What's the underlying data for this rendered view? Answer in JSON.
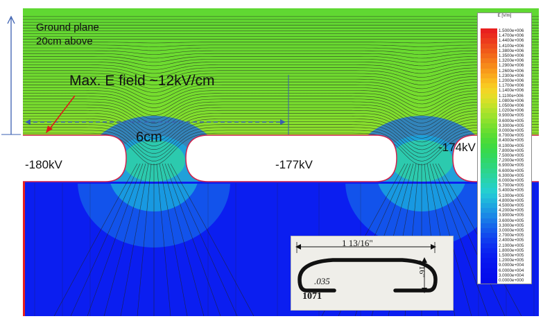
{
  "annotations": {
    "ground_line1": "Ground plane",
    "ground_line2": "20cm above",
    "max_field": "Max. E field ~12kV/cm",
    "spacing": "6cm"
  },
  "electrodes": [
    {
      "voltage": "-180kV"
    },
    {
      "voltage": "-177kV"
    },
    {
      "voltage": "-174kV"
    }
  ],
  "legend": {
    "title": "E [V/m]",
    "entries": [
      {
        "label": "1.5000e+006",
        "color": "#e8201f"
      },
      {
        "label": "1.4700e+006",
        "color": "#ea2d1d"
      },
      {
        "label": "1.4400e+006",
        "color": "#ec3b1c"
      },
      {
        "label": "1.4100e+006",
        "color": "#ee4b1b"
      },
      {
        "label": "1.3800e+006",
        "color": "#f05a1a"
      },
      {
        "label": "1.3500e+006",
        "color": "#f26a1a"
      },
      {
        "label": "1.3200e+006",
        "color": "#f47a1a"
      },
      {
        "label": "1.2900e+006",
        "color": "#f68a1a"
      },
      {
        "label": "1.2600e+006",
        "color": "#f89a1b"
      },
      {
        "label": "1.2300e+006",
        "color": "#f9aa1d"
      },
      {
        "label": "1.2000e+006",
        "color": "#f9ba1f"
      },
      {
        "label": "1.1700e+006",
        "color": "#f8c922"
      },
      {
        "label": "1.1400e+006",
        "color": "#f2d525"
      },
      {
        "label": "1.1100e+006",
        "color": "#e6dc27"
      },
      {
        "label": "1.0800e+006",
        "color": "#d6e028"
      },
      {
        "label": "1.0500e+006",
        "color": "#c4e22a"
      },
      {
        "label": "1.0200e+006",
        "color": "#b0e22b"
      },
      {
        "label": "9.9000e+005",
        "color": "#9ee22c"
      },
      {
        "label": "9.6000e+005",
        "color": "#8ce12d"
      },
      {
        "label": "9.3000e+005",
        "color": "#7adf2e"
      },
      {
        "label": "9.0000e+005",
        "color": "#6ade30"
      },
      {
        "label": "8.7000e+005",
        "color": "#5adc33"
      },
      {
        "label": "8.4000e+005",
        "color": "#4cdb38"
      },
      {
        "label": "8.1000e+005",
        "color": "#40da40"
      },
      {
        "label": "7.8000e+005",
        "color": "#38d94c"
      },
      {
        "label": "7.5000e+005",
        "color": "#33d85a"
      },
      {
        "label": "7.2000e+005",
        "color": "#30d76a"
      },
      {
        "label": "6.9000e+005",
        "color": "#2ed67a"
      },
      {
        "label": "6.6000e+005",
        "color": "#2cd58b"
      },
      {
        "label": "6.3000e+005",
        "color": "#2ad49c"
      },
      {
        "label": "6.0000e+005",
        "color": "#28d3ad"
      },
      {
        "label": "5.7000e+005",
        "color": "#26d1be"
      },
      {
        "label": "5.4000e+005",
        "color": "#24cfcf"
      },
      {
        "label": "5.1000e+005",
        "color": "#22c4d8"
      },
      {
        "label": "4.8000e+005",
        "color": "#20b6dc"
      },
      {
        "label": "4.5000e+005",
        "color": "#1ea7e0"
      },
      {
        "label": "4.2000e+005",
        "color": "#1c98e3"
      },
      {
        "label": "3.9000e+005",
        "color": "#1a88e6"
      },
      {
        "label": "3.6000e+005",
        "color": "#1878e8"
      },
      {
        "label": "3.3000e+005",
        "color": "#1668ea"
      },
      {
        "label": "3.0000e+005",
        "color": "#1459ec"
      },
      {
        "label": "2.7000e+005",
        "color": "#124aee"
      },
      {
        "label": "2.4000e+005",
        "color": "#103cef"
      },
      {
        "label": "2.1000e+005",
        "color": "#0e30f0"
      },
      {
        "label": "1.8000e+005",
        "color": "#0c26f0"
      },
      {
        "label": "1.5000e+005",
        "color": "#0a1ef0"
      },
      {
        "label": "1.2000e+005",
        "color": "#0818ef"
      },
      {
        "label": "9.0000e+004",
        "color": "#0714ee"
      },
      {
        "label": "6.0000e+004",
        "color": "#0610ed"
      },
      {
        "label": "3.0000e+004",
        "color": "#050eec"
      },
      {
        "label": "0.0000e+000",
        "color": "#040ceb"
      }
    ]
  },
  "inset": {
    "width_dim": "1 13/16\"",
    "height_dim": "7/16\"",
    "thickness": ".035",
    "part_number": "1071"
  },
  "colors": {
    "field_green": "#6ade30",
    "field_blue": "#0b1ef0",
    "field_red": "#e8201f",
    "electrode_edge": "#d0204a",
    "arrow_blue": "#3a5fb0"
  }
}
